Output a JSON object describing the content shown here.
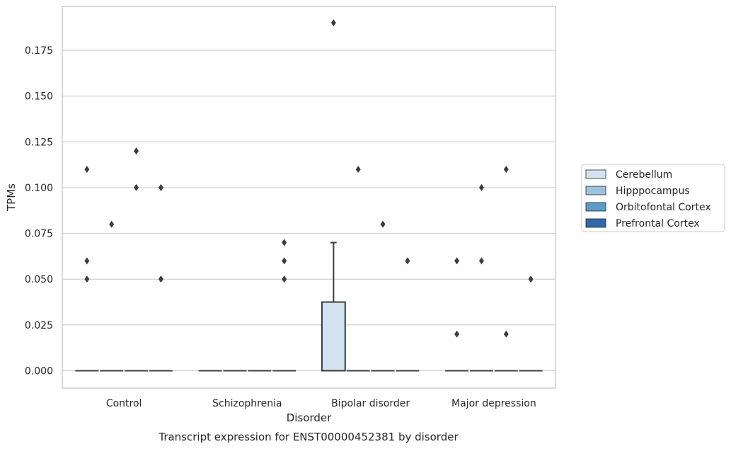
{
  "chart_data": {
    "type": "box",
    "title": "",
    "caption": "Transcript expression for ENST00000452381 by disorder",
    "xlabel": "Disorder",
    "ylabel": "TPMs",
    "ylim": [
      -0.0095,
      0.199
    ],
    "yticks": [
      0.0,
      0.025,
      0.05,
      0.075,
      0.1,
      0.125,
      0.15,
      0.175
    ],
    "ytick_labels": [
      "0.000",
      "0.025",
      "0.050",
      "0.075",
      "0.100",
      "0.125",
      "0.150",
      "0.175"
    ],
    "categories": [
      "Control",
      "Schizophrenia",
      "Bipolar disorder",
      "Major depression"
    ],
    "grid": "horizontal",
    "legend_position": "right",
    "series": [
      {
        "name": "Cerebellum",
        "color": "#d3e3f2",
        "boxes": [
          {
            "q1": 0,
            "median": 0,
            "q3": 0,
            "whisker_low": 0,
            "whisker_high": 0,
            "outliers": [
              0.11,
              0.06,
              0.05
            ]
          },
          {
            "q1": 0,
            "median": 0,
            "q3": 0,
            "whisker_low": 0,
            "whisker_high": 0,
            "outliers": []
          },
          {
            "q1": 0,
            "median": 0,
            "q3": 0.0375,
            "whisker_low": 0,
            "whisker_high": 0.07,
            "outliers": [
              0.19
            ]
          },
          {
            "q1": 0,
            "median": 0,
            "q3": 0,
            "whisker_low": 0,
            "whisker_high": 0,
            "outliers": [
              0.06,
              0.02
            ]
          }
        ]
      },
      {
        "name": "Hipppocampus",
        "color": "#9cc3de",
        "boxes": [
          {
            "q1": 0,
            "median": 0,
            "q3": 0,
            "whisker_low": 0,
            "whisker_high": 0,
            "outliers": [
              0.08
            ]
          },
          {
            "q1": 0,
            "median": 0,
            "q3": 0,
            "whisker_low": 0,
            "whisker_high": 0,
            "outliers": []
          },
          {
            "q1": 0,
            "median": 0,
            "q3": 0,
            "whisker_low": 0,
            "whisker_high": 0,
            "outliers": [
              0.11
            ]
          },
          {
            "q1": 0,
            "median": 0,
            "q3": 0,
            "whisker_low": 0,
            "whisker_high": 0,
            "outliers": [
              0.1,
              0.06
            ]
          }
        ]
      },
      {
        "name": "Orbitofontal Cortex",
        "color": "#5d9cc8",
        "boxes": [
          {
            "q1": 0,
            "median": 0,
            "q3": 0,
            "whisker_low": 0,
            "whisker_high": 0,
            "outliers": [
              0.12,
              0.1
            ]
          },
          {
            "q1": 0,
            "median": 0,
            "q3": 0,
            "whisker_low": 0,
            "whisker_high": 0,
            "outliers": []
          },
          {
            "q1": 0,
            "median": 0,
            "q3": 0,
            "whisker_low": 0,
            "whisker_high": 0,
            "outliers": [
              0.08
            ]
          },
          {
            "q1": 0,
            "median": 0,
            "q3": 0,
            "whisker_low": 0,
            "whisker_high": 0,
            "outliers": [
              0.11,
              0.02
            ]
          }
        ]
      },
      {
        "name": "Prefrontal Cortex",
        "color": "#2f6aa6",
        "boxes": [
          {
            "q1": 0,
            "median": 0,
            "q3": 0,
            "whisker_low": 0,
            "whisker_high": 0,
            "outliers": [
              0.1,
              0.05
            ]
          },
          {
            "q1": 0,
            "median": 0,
            "q3": 0,
            "whisker_low": 0,
            "whisker_high": 0,
            "outliers": [
              0.07,
              0.06,
              0.05
            ]
          },
          {
            "q1": 0,
            "median": 0,
            "q3": 0,
            "whisker_low": 0,
            "whisker_high": 0,
            "outliers": [
              0.06
            ]
          },
          {
            "q1": 0,
            "median": 0,
            "q3": 0,
            "whisker_low": 0,
            "whisker_high": 0,
            "outliers": [
              0.05
            ]
          }
        ]
      }
    ]
  }
}
